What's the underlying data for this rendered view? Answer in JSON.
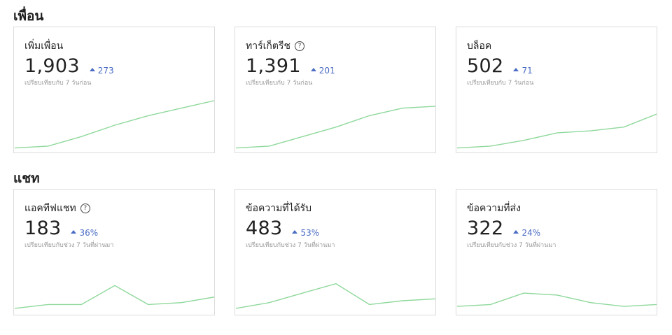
{
  "sections": [
    {
      "title": "เพื่อน",
      "cards": [
        {
          "title": "เพิ่มเพื่อน",
          "help": false,
          "value": "1,903",
          "delta": "273",
          "compare": "เปรียบเทียบกับ 7 วันก่อน",
          "trend": [
            2,
            3,
            8,
            14,
            19,
            23,
            27
          ]
        },
        {
          "title": "ทาร์เก็ตรีช",
          "help": true,
          "value": "1,391",
          "delta": "201",
          "compare": "เปรียบเทียบกับ 7 วันก่อน",
          "trend": [
            2,
            3,
            8,
            13,
            19,
            23,
            24
          ]
        },
        {
          "title": "บล็อค",
          "help": false,
          "value": "502",
          "delta": "71",
          "compare": "เปรียบเทียบกับ 7 วันก่อน",
          "trend": [
            2,
            3,
            6,
            10,
            11,
            13,
            20
          ]
        }
      ]
    },
    {
      "title": "แชท",
      "cards": [
        {
          "title": "แอคทีฟแชท",
          "help": true,
          "value": "183",
          "delta": "36%",
          "compare": "เปรียบเทียบกับช่วง 7 วันที่ผ่านมา",
          "trend": [
            3,
            5,
            5,
            15,
            5,
            6,
            9
          ]
        },
        {
          "title": "ข้อความที่ได้รับ",
          "help": false,
          "value": "483",
          "delta": "53%",
          "compare": "เปรียบเทียบกับช่วง 7 วันที่ผ่านมา",
          "trend": [
            3,
            6,
            11,
            16,
            5,
            7,
            8
          ]
        },
        {
          "title": "ข้อความที่ส่ง",
          "help": false,
          "value": "322",
          "delta": "24%",
          "compare": "เปรียบเทียบกับช่วง 7 วันที่ผ่านมา",
          "trend": [
            4,
            5,
            11,
            10,
            6,
            4,
            5
          ]
        }
      ]
    }
  ],
  "icons": {
    "help": "help-circle-icon",
    "delta": "triangle-up-icon"
  },
  "colors": {
    "sparkline": "#8ed89b",
    "delta": "#4a6cc4",
    "muted": "#9a9a9a"
  }
}
